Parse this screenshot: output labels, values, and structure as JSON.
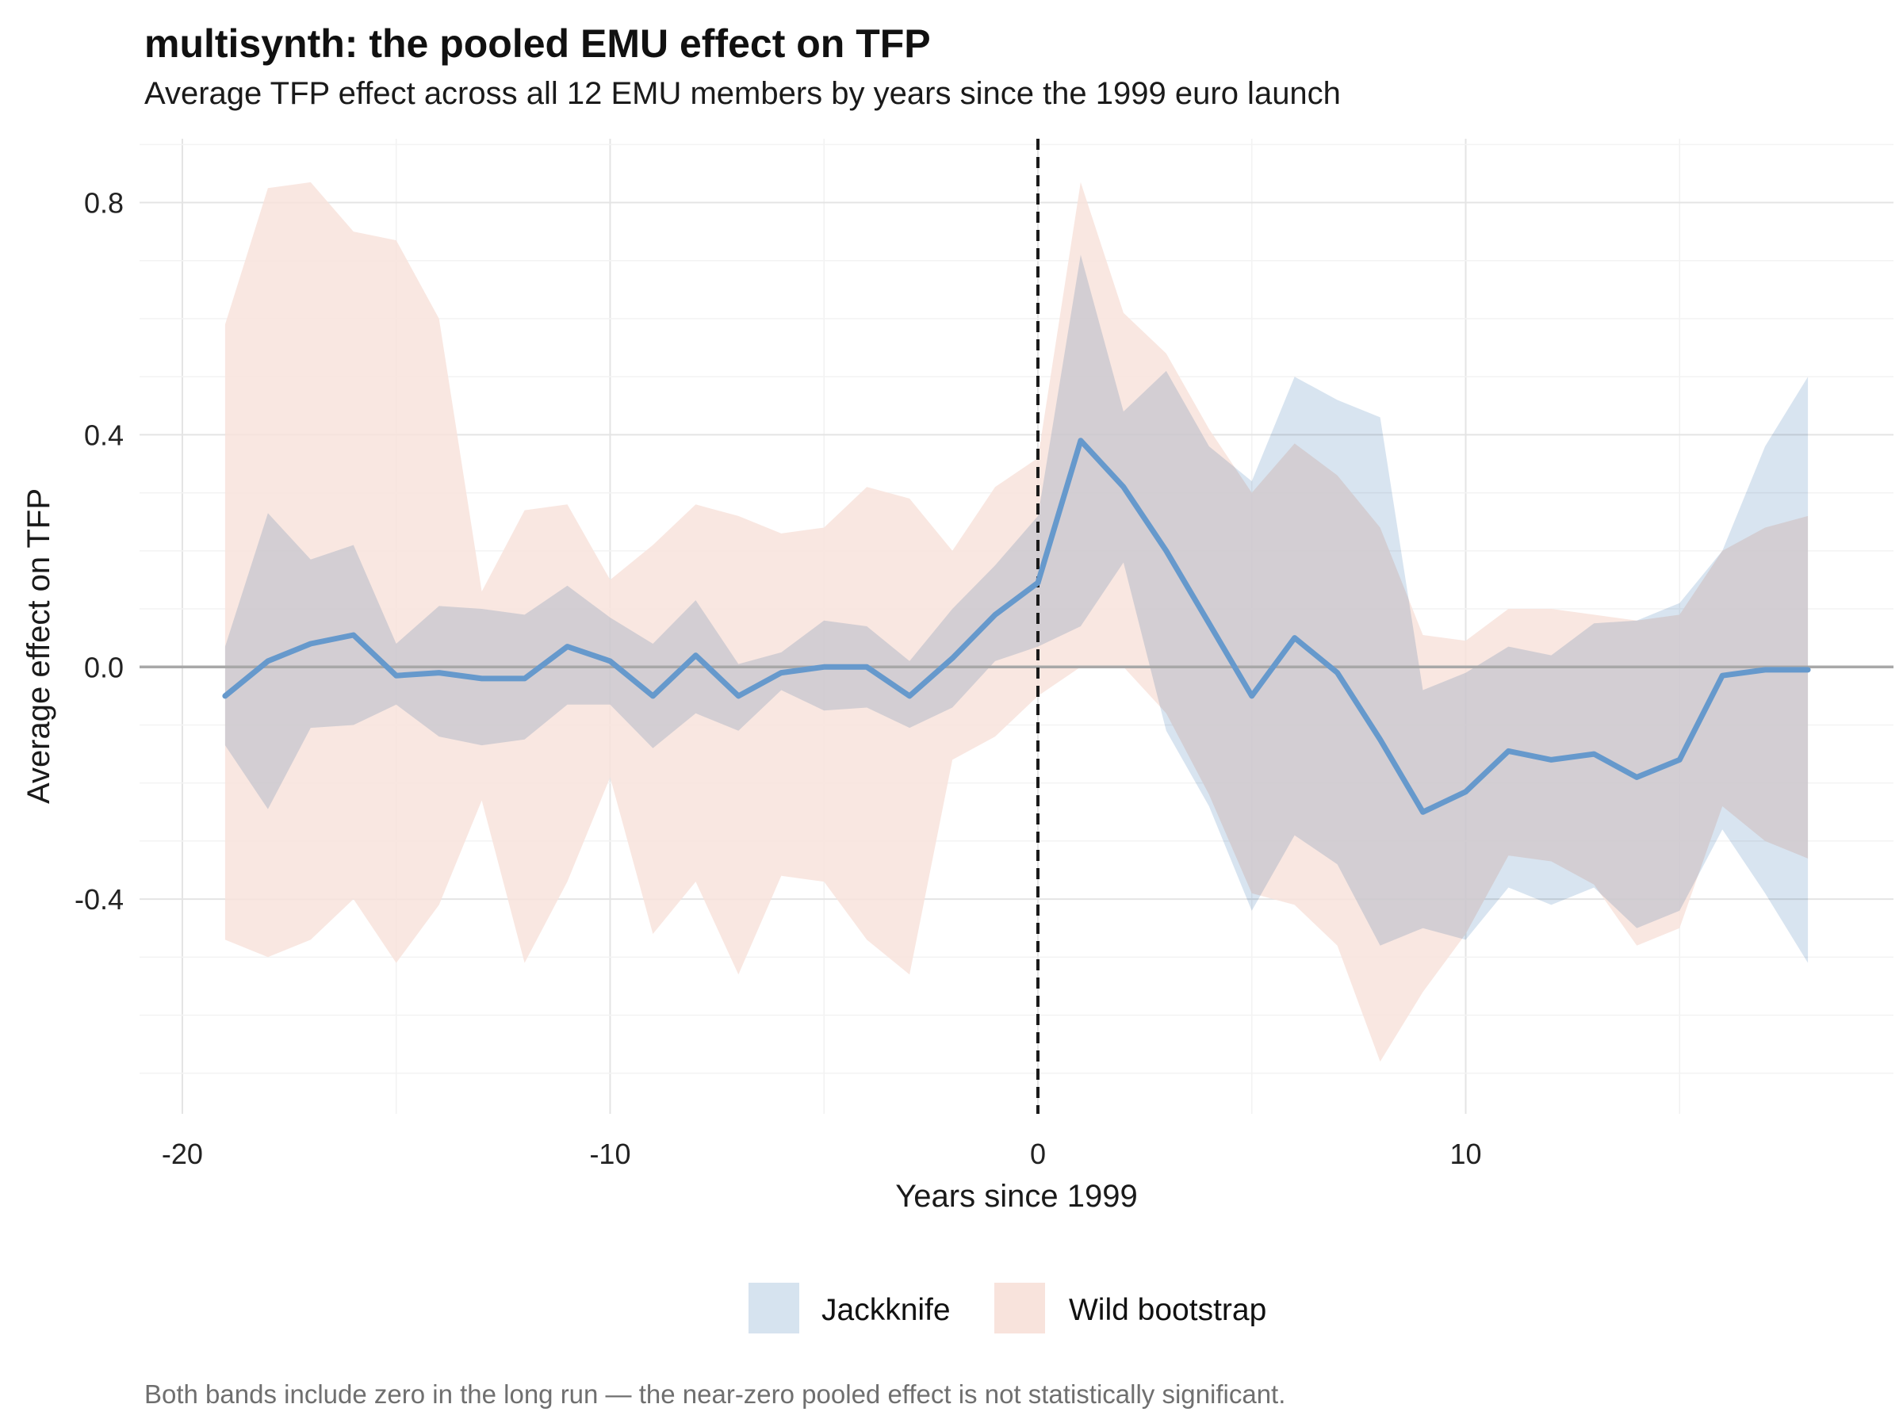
{
  "title": "multisynth: the pooled EMU effect on TFP",
  "subtitle": "Average TFP effect across all 12 EMU members by years since the 1999 euro launch",
  "caption": "Both bands include zero in the long run — the near-zero pooled effect is not statistically significant.",
  "chart_data": {
    "type": "line",
    "xlabel": "Years since 1999",
    "ylabel": "Average effect on TFP",
    "xlim": [
      -21,
      20
    ],
    "ylim": [
      -0.77,
      0.91
    ],
    "x_ticks": [
      -20,
      -10,
      0,
      10
    ],
    "x_tick_labels": [
      "-20",
      "-10",
      "0",
      "10"
    ],
    "y_ticks": [
      -0.4,
      0.0,
      0.4,
      0.8
    ],
    "y_tick_labels": [
      "-0.4",
      "0.0",
      "0.4",
      "0.8"
    ],
    "grid": true,
    "legend_position": "bottom",
    "reference_lines": {
      "horizontal_zero": true,
      "vertical_dashed_at": 0
    },
    "x": [
      -19,
      -18,
      -17,
      -16,
      -15,
      -14,
      -13,
      -12,
      -11,
      -10,
      -9,
      -8,
      -7,
      -6,
      -5,
      -4,
      -3,
      -2,
      -1,
      0,
      1,
      2,
      3,
      4,
      5,
      6,
      7,
      8,
      9,
      10,
      11,
      12,
      13,
      14,
      15,
      16,
      17,
      18
    ],
    "estimate": [
      -0.05,
      0.01,
      0.04,
      0.055,
      -0.015,
      -0.01,
      -0.02,
      -0.02,
      0.035,
      0.01,
      -0.05,
      0.02,
      -0.05,
      -0.01,
      0.0,
      0.0,
      -0.05,
      0.015,
      0.09,
      0.145,
      0.39,
      0.31,
      0.2,
      0.075,
      -0.05,
      0.05,
      -0.01,
      -0.125,
      -0.25,
      -0.215,
      -0.145,
      -0.16,
      -0.15,
      -0.19,
      -0.16,
      -0.015,
      -0.005,
      -0.005
    ],
    "series": [
      {
        "name": "Jackknife",
        "color": "#d6e3ef",
        "lower": [
          -0.135,
          -0.245,
          -0.105,
          -0.1,
          -0.065,
          -0.12,
          -0.135,
          -0.125,
          -0.065,
          -0.065,
          -0.14,
          -0.08,
          -0.11,
          -0.04,
          -0.075,
          -0.07,
          -0.105,
          -0.07,
          0.01,
          0.035,
          0.07,
          0.18,
          -0.11,
          -0.24,
          -0.42,
          -0.29,
          -0.34,
          -0.48,
          -0.45,
          -0.47,
          -0.38,
          -0.41,
          -0.38,
          -0.45,
          -0.42,
          -0.28,
          -0.39,
          -0.51
        ],
        "upper": [
          0.035,
          0.265,
          0.185,
          0.21,
          0.04,
          0.105,
          0.1,
          0.09,
          0.14,
          0.085,
          0.04,
          0.115,
          0.005,
          0.025,
          0.08,
          0.07,
          0.01,
          0.1,
          0.175,
          0.26,
          0.71,
          0.44,
          0.51,
          0.38,
          0.32,
          0.5,
          0.46,
          0.43,
          -0.04,
          -0.01,
          0.035,
          0.02,
          0.075,
          0.08,
          0.11,
          0.2,
          0.38,
          0.5
        ]
      },
      {
        "name": "Wild bootstrap",
        "color": "#f8e3dc",
        "lower": [
          -0.47,
          -0.5,
          -0.47,
          -0.4,
          -0.51,
          -0.41,
          -0.23,
          -0.51,
          -0.37,
          -0.19,
          -0.46,
          -0.37,
          -0.53,
          -0.36,
          -0.37,
          -0.47,
          -0.53,
          -0.16,
          -0.12,
          -0.05,
          0.0,
          0.0,
          -0.08,
          -0.22,
          -0.39,
          -0.41,
          -0.48,
          -0.68,
          -0.56,
          -0.46,
          -0.325,
          -0.335,
          -0.375,
          -0.48,
          -0.45,
          -0.24,
          -0.3,
          -0.33
        ],
        "upper": [
          0.59,
          0.825,
          0.835,
          0.75,
          0.735,
          0.6,
          0.13,
          0.27,
          0.28,
          0.15,
          0.21,
          0.28,
          0.26,
          0.23,
          0.24,
          0.31,
          0.29,
          0.2,
          0.31,
          0.36,
          0.835,
          0.61,
          0.54,
          0.41,
          0.3,
          0.385,
          0.33,
          0.24,
          0.055,
          0.045,
          0.1,
          0.1,
          0.09,
          0.08,
          0.09,
          0.2,
          0.24,
          0.26
        ]
      }
    ],
    "line_color": "#6699cc"
  }
}
